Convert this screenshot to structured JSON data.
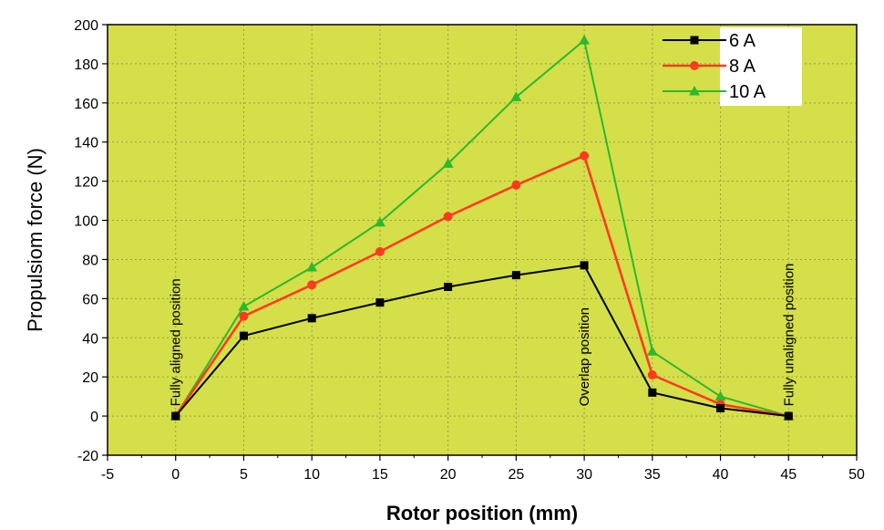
{
  "colors": {
    "plot_bg": "#d4df4a",
    "grid": "#9aa040",
    "series": [
      "#000000",
      "#ff3b1f",
      "#2db82d"
    ]
  },
  "chart_data": {
    "type": "line",
    "xlabel": "Rotor position (mm)",
    "ylabel": "Propulsiom force (N)",
    "xlim": [
      -5,
      50
    ],
    "ylim": [
      -20,
      200
    ],
    "xticks": [
      -5,
      0,
      5,
      10,
      15,
      20,
      25,
      30,
      35,
      40,
      45,
      50
    ],
    "yticks": [
      -20,
      0,
      20,
      40,
      60,
      80,
      100,
      120,
      140,
      160,
      180,
      200
    ],
    "grid": true,
    "legend_position": "top-right",
    "x": [
      0,
      5,
      10,
      15,
      20,
      25,
      30,
      35,
      40,
      45
    ],
    "series": [
      {
        "name": "6 A",
        "marker": "square",
        "values": [
          0,
          41,
          50,
          58,
          66,
          72,
          77,
          12,
          4,
          0
        ]
      },
      {
        "name": "8 A",
        "marker": "circle",
        "values": [
          0,
          51,
          67,
          84,
          102,
          118,
          133,
          21,
          6,
          0
        ]
      },
      {
        "name": "10 A",
        "marker": "triangle",
        "values": [
          0,
          56,
          76,
          99,
          129,
          163,
          192,
          33,
          10,
          0
        ]
      }
    ],
    "annotations": [
      {
        "text": "Fully aligned position",
        "x": 0
      },
      {
        "text": "Overlap position",
        "x": 30
      },
      {
        "text": "Fully unaligned position",
        "x": 45
      }
    ]
  }
}
